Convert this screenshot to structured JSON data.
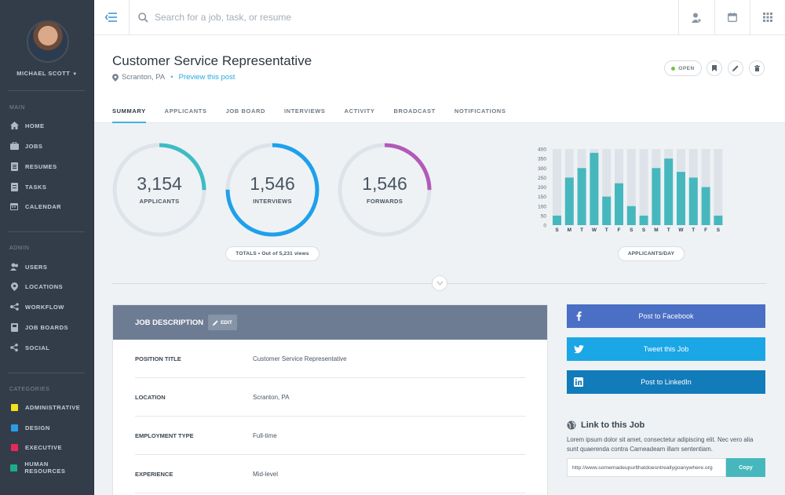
{
  "sidebar": {
    "user_name": "MICHAEL SCOTT",
    "sections": [
      {
        "heading": "MAIN",
        "items": [
          {
            "label": "HOME",
            "icon": "home-icon"
          },
          {
            "label": "JOBS",
            "icon": "briefcase-icon"
          },
          {
            "label": "RESUMES",
            "icon": "document-icon"
          },
          {
            "label": "TASKS",
            "icon": "tasks-icon"
          },
          {
            "label": "CALENDAR",
            "icon": "calendar-icon"
          }
        ]
      },
      {
        "heading": "ADMIN",
        "items": [
          {
            "label": "USERS",
            "icon": "users-icon"
          },
          {
            "label": "LOCATIONS",
            "icon": "location-icon"
          },
          {
            "label": "WORKFLOW",
            "icon": "workflow-icon"
          },
          {
            "label": "JOB BOARDS",
            "icon": "board-icon"
          },
          {
            "label": "SOCIAL",
            "icon": "share-icon"
          }
        ]
      },
      {
        "heading": "CATEGORIES",
        "items": [
          {
            "label": "ADMINISTRATIVE",
            "color": "#f3e01c"
          },
          {
            "label": "DESIGN",
            "color": "#2b9de8"
          },
          {
            "label": "EXECUTIVE",
            "color": "#e8285a"
          },
          {
            "label": "HUMAN RESOURCES",
            "color": "#1eab8c"
          }
        ]
      }
    ]
  },
  "topbar": {
    "search_placeholder": "Search for a job, task, or resume",
    "icons": [
      "user-icon",
      "calendar-icon",
      "apps-grid-icon"
    ]
  },
  "header": {
    "title": "Customer Service Representative",
    "location": "Scranton, PA",
    "preview_link": "Preview this post",
    "status": "OPEN",
    "tabs": [
      "SUMMARY",
      "APPLICANTS",
      "JOB BOARD",
      "INTERVIEWS",
      "ACTIVITY",
      "BROADCAST",
      "NOTIFICATIONS"
    ],
    "active_tab": "SUMMARY"
  },
  "stats": {
    "rings": [
      {
        "value": "3,154",
        "label": "APPLICANTS",
        "fraction": 0.25,
        "color": "#3dbcc4"
      },
      {
        "value": "1,546",
        "label": "INTERVIEWS",
        "fraction": 0.75,
        "color": "#1ea0ec"
      },
      {
        "value": "1,546",
        "label": "FORWARDS",
        "fraction": 0.25,
        "color": "#b25ab8"
      }
    ],
    "totals_label": "TOTALS • Out of 5,231 views",
    "chart_label": "APPLICANTS/DAY"
  },
  "chart_data": {
    "type": "bar",
    "categories": [
      "S",
      "M",
      "T",
      "W",
      "T",
      "F",
      "S",
      "S",
      "M",
      "T",
      "W",
      "T",
      "F",
      "S"
    ],
    "values": [
      50,
      250,
      300,
      380,
      150,
      220,
      100,
      50,
      300,
      350,
      280,
      250,
      200,
      50
    ],
    "background_max": 400,
    "ylim": [
      0,
      400
    ],
    "yticks": [
      0,
      50,
      100,
      150,
      200,
      250,
      300,
      350,
      400
    ],
    "color": "#46b8bd",
    "bg_color": "#dde3e9"
  },
  "job_description": {
    "title": "JOB DESCRIPTION",
    "edit_label": "EDIT",
    "rows": [
      {
        "key": "POSITION TITLE",
        "value": "Customer Service Representative"
      },
      {
        "key": "LOCATION",
        "value": "Scranton, PA"
      },
      {
        "key": "EMPLOYMENT TYPE",
        "value": "Full-time"
      },
      {
        "key": "EXPERIENCE",
        "value": "Mid-level"
      }
    ]
  },
  "social": {
    "facebook": "Post to Facebook",
    "twitter": "Tweet this Job",
    "linkedin": "Post to LinkedIn",
    "link_title": "Link to this Job",
    "link_desc": "Lorem ipsum dolor sit amet, consectetur adipiscing elit. Nec vero alia sunt quaerenda contra Carneadeam illam sententiam.",
    "url": "http://www.somemadeupurlthatdoesntreallygoanywhere.org",
    "copy_label": "Copy"
  }
}
